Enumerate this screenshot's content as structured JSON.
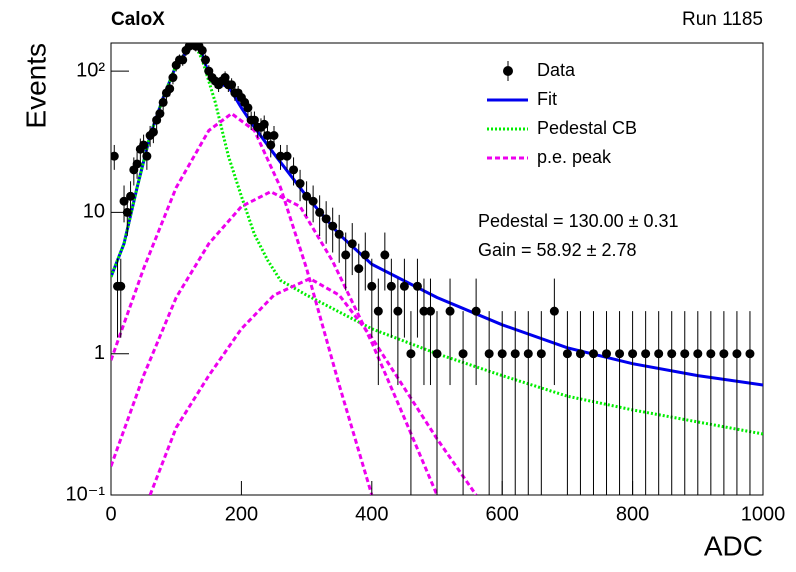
{
  "chart_data": {
    "type": "scatter",
    "title": "CaloX",
    "subtitle": "Run 1185",
    "x_label": "ADC",
    "y_label": "Events",
    "log_y": true,
    "xlim": [
      0,
      1000
    ],
    "ylim": [
      0.1,
      158
    ],
    "xticks": [
      0,
      200,
      400,
      600,
      800,
      1000
    ],
    "yticks": [
      {
        "value": 0.1,
        "label": "10⁻¹"
      },
      1,
      10,
      {
        "value": 100,
        "label": "10²"
      }
    ],
    "annotations": [
      "Pedestal = 130.00 ± 0.31",
      "Gain = 58.92 ± 2.78"
    ],
    "data": {
      "name": "Data",
      "color": "#000000",
      "x": [
        5,
        10,
        15,
        20,
        25,
        30,
        35,
        40,
        45,
        50,
        55,
        60,
        65,
        70,
        75,
        80,
        85,
        90,
        95,
        100,
        105,
        110,
        115,
        120,
        125,
        130,
        135,
        140,
        145,
        150,
        155,
        160,
        165,
        170,
        175,
        180,
        185,
        190,
        195,
        200,
        205,
        210,
        215,
        220,
        225,
        230,
        235,
        240,
        245,
        250,
        260,
        270,
        280,
        290,
        300,
        310,
        320,
        330,
        340,
        350,
        360,
        370,
        380,
        390,
        400,
        410,
        420,
        430,
        440,
        450,
        460,
        470,
        480,
        490,
        500,
        520,
        540,
        560,
        580,
        600,
        620,
        640,
        660,
        680,
        700,
        720,
        740,
        760,
        780,
        800,
        820,
        840,
        860,
        880,
        900,
        920,
        940,
        960,
        980
      ],
      "values": [
        25,
        3,
        3,
        12,
        10,
        13,
        20,
        22,
        28,
        30,
        25,
        35,
        37,
        45,
        50,
        60,
        70,
        75,
        90,
        110,
        120,
        120,
        140,
        150,
        160,
        150,
        150,
        140,
        120,
        100,
        90,
        85,
        80,
        85,
        90,
        80,
        80,
        70,
        70,
        65,
        60,
        55,
        45,
        45,
        40,
        40,
        42,
        35,
        30,
        35,
        25,
        25,
        20,
        16,
        13,
        12,
        10,
        9,
        8,
        7,
        5,
        6,
        4,
        5,
        3,
        2,
        5,
        3,
        2,
        3,
        1,
        3,
        2,
        2,
        1,
        2,
        1,
        2,
        1,
        1,
        1,
        1,
        1,
        2,
        1,
        1,
        1,
        1,
        1,
        1,
        1,
        1,
        1,
        1,
        1,
        1,
        1,
        1,
        1
      ],
      "errors": [
        5,
        1.7,
        1.7,
        3.5,
        3.2,
        3.6,
        4.5,
        4.7,
        5.3,
        5.5,
        5,
        5.9,
        6.1,
        6.7,
        7.1,
        7.7,
        8.4,
        8.7,
        9.5,
        10.5,
        11,
        11,
        11.8,
        12.2,
        12.6,
        12.2,
        12.2,
        11.8,
        11,
        10,
        9.5,
        9.2,
        8.9,
        9.2,
        9.5,
        8.9,
        8.9,
        8.4,
        8.4,
        8.1,
        7.7,
        7.4,
        6.7,
        6.7,
        6.3,
        6.3,
        6.5,
        5.9,
        5.5,
        5.9,
        5,
        5,
        4.5,
        4,
        3.6,
        3.5,
        3.2,
        3,
        2.8,
        2.6,
        2.2,
        2.4,
        2,
        2.2,
        1.7,
        1.4,
        2.2,
        1.7,
        1.4,
        1.7,
        1,
        1.7,
        1.4,
        1.4,
        1,
        1.4,
        1,
        1.4,
        1,
        1,
        1,
        1,
        1,
        1.4,
        1,
        1,
        1,
        1,
        1,
        1,
        1,
        1,
        1,
        1,
        1,
        1,
        1,
        1,
        1
      ]
    },
    "series": [
      {
        "name": "Fit",
        "color": "#0000ee",
        "style": "solid",
        "x": [
          0,
          20,
          40,
          60,
          80,
          100,
          120,
          130,
          140,
          150,
          160,
          180,
          200,
          220,
          250,
          300,
          350,
          400,
          500,
          600,
          700,
          800,
          900,
          1000
        ],
        "values": [
          3.5,
          6,
          15,
          35,
          65,
          110,
          145,
          155,
          130,
          95,
          82,
          78,
          55,
          40,
          26,
          13,
          7,
          4.3,
          2.5,
          1.6,
          1.1,
          0.85,
          0.7,
          0.6
        ]
      },
      {
        "name": "Pedestal CB",
        "color": "#00ee00",
        "style": "dotted",
        "x": [
          0,
          20,
          40,
          60,
          80,
          100,
          120,
          130,
          140,
          160,
          180,
          200,
          220,
          240,
          260,
          300,
          400,
          500,
          600,
          700,
          800,
          1000
        ],
        "values": [
          3.5,
          6,
          15,
          35,
          65,
          110,
          145,
          150,
          120,
          60,
          25,
          13,
          7,
          4.6,
          3.3,
          2.6,
          1.5,
          1,
          0.7,
          0.5,
          0.4,
          0.27
        ]
      },
      {
        "name": "p.e. peak",
        "color": "#ee00ee",
        "style": "dashed",
        "x": [
          0,
          50,
          100,
          150,
          185,
          220,
          260,
          300,
          350,
          400
        ],
        "values": [
          0.9,
          4,
          15,
          38,
          50,
          38,
          15,
          4,
          0.6,
          0.1
        ]
      },
      {
        "color": "#ee00ee",
        "style": "dashed",
        "x": [
          0,
          50,
          100,
          150,
          200,
          245,
          290,
          340,
          400,
          450,
          500
        ],
        "values": [
          0.16,
          0.7,
          2.5,
          6,
          11,
          14,
          11,
          4.5,
          1.2,
          0.35,
          0.1
        ]
      },
      {
        "color": "#ee00ee",
        "style": "dashed",
        "x": [
          60,
          100,
          150,
          200,
          250,
          305,
          350,
          400,
          500,
          560
        ],
        "values": [
          0.1,
          0.3,
          0.7,
          1.5,
          2.6,
          3.4,
          2.6,
          1.3,
          0.25,
          0.1
        ]
      }
    ]
  }
}
